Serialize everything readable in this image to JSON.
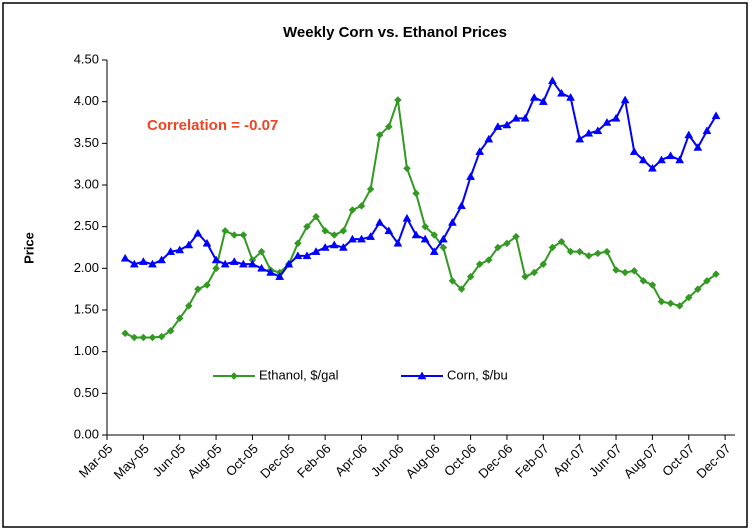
{
  "chart_data": {
    "type": "line",
    "title": "Weekly Corn vs. Ethanol Prices",
    "y_label": "Price",
    "annotation": "Correlation = -0.07",
    "categories": [
      "Mar-05",
      null,
      null,
      null,
      "May-05",
      null,
      null,
      null,
      "Jun-05",
      null,
      null,
      null,
      "Aug-05",
      null,
      null,
      null,
      "Oct-05",
      null,
      null,
      null,
      "Dec-05",
      null,
      null,
      null,
      "Feb-06",
      null,
      null,
      null,
      "Apr-06",
      null,
      null,
      null,
      "Jun-06",
      null,
      null,
      null,
      "Aug-06",
      null,
      null,
      null,
      "Oct-06",
      null,
      null,
      null,
      "Dec-06",
      null,
      null,
      null,
      "Feb-07",
      null,
      null,
      null,
      "Apr-07",
      null,
      null,
      null,
      "Jun-07",
      null,
      null,
      null,
      "Aug-07",
      null,
      null,
      null,
      "Oct-07",
      null,
      null,
      null,
      "Dec-07"
    ],
    "series": [
      {
        "name": "Ethanol, $/gal",
        "color": "#339922",
        "marker": "diamond",
        "values": [
          null,
          null,
          1.22,
          1.17,
          1.17,
          1.17,
          1.18,
          1.25,
          1.4,
          1.55,
          1.75,
          1.8,
          2.0,
          2.45,
          2.4,
          2.4,
          2.1,
          2.2,
          1.98,
          1.95,
          2.05,
          2.3,
          2.5,
          2.62,
          2.45,
          2.4,
          2.45,
          2.7,
          2.75,
          2.95,
          3.6,
          3.7,
          4.02,
          3.2,
          2.9,
          2.5,
          2.4,
          2.25,
          1.85,
          1.75,
          1.9,
          2.05,
          2.1,
          2.25,
          2.3,
          2.38,
          1.9,
          1.95,
          2.05,
          2.25,
          2.32,
          2.2,
          2.2,
          2.15,
          2.18,
          2.2,
          1.98,
          1.95,
          1.97,
          1.85,
          1.8,
          1.6,
          1.58,
          1.55,
          1.65,
          1.75,
          1.85,
          1.93,
          null
        ]
      },
      {
        "name": "Corn, $/bu",
        "color": "#0000ff",
        "marker": "triangle",
        "values": [
          null,
          null,
          2.12,
          2.05,
          2.08,
          2.05,
          2.1,
          2.2,
          2.22,
          2.28,
          2.42,
          2.3,
          2.1,
          2.05,
          2.08,
          2.05,
          2.05,
          2.0,
          1.95,
          1.9,
          2.05,
          2.15,
          2.15,
          2.2,
          2.25,
          2.28,
          2.25,
          2.35,
          2.35,
          2.38,
          2.55,
          2.45,
          2.3,
          2.6,
          2.4,
          2.35,
          2.2,
          2.35,
          2.55,
          2.75,
          3.1,
          3.4,
          3.55,
          3.7,
          3.72,
          3.8,
          3.8,
          4.05,
          4.0,
          4.25,
          4.1,
          4.05,
          3.55,
          3.62,
          3.65,
          3.75,
          3.8,
          4.02,
          3.4,
          3.3,
          3.2,
          3.3,
          3.35,
          3.3,
          3.6,
          3.45,
          3.65,
          3.83,
          null
        ]
      }
    ],
    "ylim": [
      0,
      4.5
    ],
    "yticks": [
      {
        "value": 0,
        "label": "0.00"
      },
      {
        "value": 0.5,
        "label": "0.50"
      },
      {
        "value": 1,
        "label": "1.00"
      },
      {
        "value": 1.5,
        "label": "1.50"
      },
      {
        "value": 2,
        "label": "2.00"
      },
      {
        "value": 2.5,
        "label": "2.50"
      },
      {
        "value": 3,
        "label": "3.00"
      },
      {
        "value": 3.5,
        "label": "3.50"
      },
      {
        "value": 4,
        "label": "4.00"
      },
      {
        "value": 4.5,
        "label": "4.50"
      }
    ],
    "grid": false,
    "legend": "bottom-left"
  }
}
